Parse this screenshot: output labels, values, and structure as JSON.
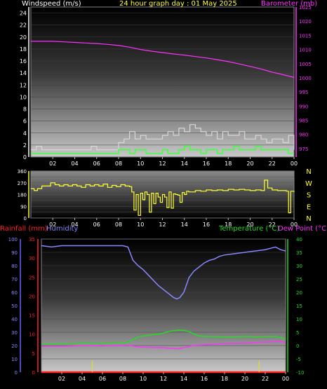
{
  "chart_data": [
    {
      "type": "line",
      "title": "24 hour graph day : 01 May 2025",
      "y_left_label": "Windspeed (m/s)",
      "y_right_label": "Barometer (mb)",
      "y_left_lim": [
        0,
        25
      ],
      "y_left_ticks": [
        0,
        2,
        4,
        6,
        8,
        10,
        12,
        14,
        16,
        18,
        20,
        22,
        24
      ],
      "y_right_lim": [
        972,
        1025
      ],
      "y_right_ticks": [
        975,
        980,
        985,
        990,
        995,
        1000,
        1005,
        1010,
        1015,
        1020,
        1025
      ],
      "x_lim": [
        0,
        24
      ],
      "x_ticks": [
        "02",
        "04",
        "06",
        "08",
        "10",
        "12",
        "14",
        "16",
        "18",
        "20",
        "22",
        "00"
      ],
      "colors": {
        "barometer": "#ff33ff",
        "gust": "#d8d8d8",
        "windspeed": "#44ff44"
      },
      "series": [
        {
          "key": "barometer",
          "x": [
            0,
            1,
            2,
            3,
            4,
            5,
            6,
            7,
            8,
            9,
            10,
            11,
            12,
            13,
            14,
            15,
            16,
            17,
            18,
            19,
            20,
            21,
            22,
            23,
            24
          ],
          "y": [
            1012.9,
            1012.9,
            1012.9,
            1012.7,
            1012.5,
            1012.3,
            1012.1,
            1011.8,
            1011.4,
            1010.8,
            1010.0,
            1009.4,
            1008.9,
            1008.4,
            1008.0,
            1007.5,
            1007.0,
            1006.4,
            1005.7,
            1004.9,
            1004.0,
            1003.1,
            1002.0,
            1001.1,
            1000.1
          ]
        },
        {
          "key": "gust",
          "x": [
            0,
            0.5,
            1,
            1.5,
            2,
            2.5,
            3,
            3.5,
            4,
            4.5,
            5,
            5.5,
            6,
            6.5,
            7,
            7.5,
            8,
            8.5,
            9,
            9.5,
            10,
            10.5,
            11,
            11.5,
            12,
            12.5,
            13,
            13.5,
            14,
            14.5,
            15,
            15.5,
            16,
            16.5,
            17,
            17.5,
            18,
            18.5,
            19,
            19.5,
            20,
            20.5,
            21,
            21.5,
            22,
            22.5,
            23,
            23.5,
            24
          ],
          "y": [
            1.2,
            1.8,
            1.2,
            1.2,
            1.2,
            1.2,
            1.2,
            1.2,
            1.2,
            1.2,
            1.2,
            1.8,
            1.2,
            1.2,
            1.2,
            1.2,
            2.4,
            3.0,
            4.2,
            3.0,
            3.6,
            3.0,
            3.0,
            3.0,
            3.6,
            4.2,
            3.6,
            4.8,
            4.2,
            5.4,
            4.8,
            4.2,
            3.6,
            4.2,
            3.0,
            4.2,
            3.6,
            3.6,
            4.2,
            3.0,
            3.0,
            3.6,
            3.0,
            2.4,
            3.0,
            3.0,
            2.4,
            3.6,
            1.2
          ]
        },
        {
          "key": "windspeed",
          "x": [
            0,
            0.5,
            1,
            1.5,
            2,
            2.5,
            3,
            3.5,
            4,
            4.5,
            5,
            5.5,
            6,
            6.5,
            7,
            7.5,
            8,
            8.5,
            9,
            9.5,
            10,
            10.5,
            11,
            11.5,
            12,
            12.5,
            13,
            13.5,
            14,
            14.5,
            15,
            15.5,
            16,
            16.5,
            17,
            17.5,
            18,
            18.5,
            19,
            19.5,
            20,
            20.5,
            21,
            21.5,
            22,
            22.5,
            23,
            23.5,
            24
          ],
          "y": [
            0.6,
            0.6,
            0.6,
            0.6,
            0.6,
            0.6,
            0.6,
            0.6,
            0.6,
            0.6,
            0.6,
            0.6,
            0.6,
            0.6,
            0.6,
            0.6,
            1.2,
            1.2,
            0.6,
            1.2,
            1.2,
            0.6,
            0.6,
            0.6,
            1.2,
            0.6,
            0.6,
            1.2,
            1.8,
            1.2,
            1.2,
            0.6,
            1.2,
            1.2,
            0.6,
            1.2,
            1.2,
            1.8,
            1.2,
            1.2,
            1.2,
            1.8,
            1.2,
            1.2,
            1.2,
            1.2,
            1.2,
            0.6,
            0.6
          ]
        }
      ]
    },
    {
      "type": "line",
      "y_left_lim": [
        0,
        360
      ],
      "y_left_ticks": [
        0,
        45,
        90,
        135,
        180,
        225,
        270,
        315,
        360
      ],
      "y_right_labels": [
        "N",
        "W",
        "S",
        "E",
        "N"
      ],
      "x_lim": [
        0,
        24
      ],
      "x_ticks": [
        "02",
        "04",
        "06",
        "08",
        "10",
        "12",
        "14",
        "16",
        "18",
        "20",
        "22",
        "00"
      ],
      "colors": {
        "direction": "#ffff33"
      },
      "series": [
        {
          "key": "direction",
          "x": [
            0,
            0.3,
            0.6,
            1,
            1.4,
            1.8,
            2.2,
            2.6,
            3,
            3.4,
            3.8,
            4.2,
            4.6,
            5,
            5.4,
            5.8,
            6.2,
            6.6,
            7,
            7.4,
            7.8,
            8.2,
            8.6,
            9,
            9.2,
            9.4,
            9.6,
            9.8,
            10,
            10.2,
            10.4,
            10.6,
            10.8,
            11,
            11.2,
            11.4,
            11.6,
            11.8,
            12,
            12.2,
            12.4,
            12.6,
            12.8,
            13,
            13.2,
            13.4,
            13.6,
            13.8,
            14,
            14.2,
            14.4,
            14.6,
            15,
            15.5,
            16,
            16.5,
            17,
            17.5,
            18,
            18.5,
            19,
            19.5,
            20,
            20.5,
            21,
            21.3,
            21.6,
            22,
            22.5,
            23,
            23.3,
            23.5,
            23.7,
            24
          ],
          "y": [
            225,
            210,
            225,
            245,
            245,
            270,
            255,
            245,
            255,
            245,
            255,
            245,
            235,
            255,
            245,
            255,
            245,
            260,
            235,
            250,
            240,
            255,
            245,
            240,
            200,
            60,
            180,
            20,
            190,
            140,
            200,
            180,
            45,
            190,
            110,
            190,
            160,
            120,
            180,
            160,
            80,
            200,
            75,
            185,
            180,
            175,
            120,
            195,
            180,
            205,
            200,
            200,
            210,
            205,
            215,
            210,
            215,
            210,
            220,
            215,
            220,
            215,
            210,
            215,
            210,
            290,
            230,
            215,
            210,
            210,
            205,
            40,
            205,
            200
          ]
        }
      ]
    },
    {
      "type": "line",
      "y_left_label_1": "Rainfall (mm)",
      "y_left_label_2": "Humidity",
      "y_right_label_1": "Temperature (°C)",
      "y_right_label_2": "Dew Point (°C)",
      "humidity_lim": [
        0,
        100
      ],
      "humidity_ticks": [
        0,
        10,
        20,
        30,
        40,
        50,
        60,
        70,
        80,
        90,
        100
      ],
      "rain_lim": [
        0,
        35
      ],
      "rain_ticks": [
        0,
        5,
        10,
        15,
        20,
        25,
        30,
        35
      ],
      "temp_lim": [
        -10,
        40
      ],
      "temp_ticks": [
        -10,
        -5,
        0,
        5,
        10,
        15,
        20,
        25,
        30,
        35,
        40
      ],
      "x_lim": [
        0,
        24
      ],
      "x_ticks": [
        "02",
        "04",
        "06",
        "08",
        "10",
        "12",
        "14",
        "16",
        "18",
        "20",
        "22",
        "00"
      ],
      "colors": {
        "humidity": "#8888ff",
        "temperature": "#22dd22",
        "dewpoint": "#ff33ff",
        "rain": "#ff2222",
        "rain_marker": "#dddd22"
      },
      "series": [
        {
          "key": "humidity",
          "x": [
            0,
            1,
            2,
            3,
            4,
            5,
            6,
            7,
            8,
            8.5,
            9,
            9.5,
            10,
            10.5,
            11,
            11.5,
            12,
            12.5,
            13,
            13.3,
            13.6,
            14,
            14.5,
            15,
            15.5,
            16,
            16.5,
            17,
            17.5,
            18,
            19,
            20,
            21,
            22,
            22.5,
            23,
            23.5,
            24
          ],
          "y": [
            95,
            94,
            95,
            95,
            95,
            95,
            95,
            95,
            95,
            94,
            84,
            80,
            77,
            73,
            69,
            65,
            62,
            59,
            56,
            55,
            56,
            60,
            71,
            76,
            79,
            82,
            84,
            85,
            87,
            88,
            89,
            90,
            91,
            92,
            93,
            94,
            92,
            91
          ]
        },
        {
          "key": "temperature",
          "x": [
            0,
            1,
            2,
            3,
            4,
            5,
            6,
            7,
            8,
            8.5,
            9,
            9.5,
            10,
            10.5,
            11,
            11.5,
            12,
            12.5,
            13,
            13.5,
            14,
            14.5,
            15,
            15.5,
            16,
            17,
            18,
            19,
            20,
            21,
            22,
            23,
            23.5,
            24
          ],
          "y": [
            0.5,
            0.5,
            0.7,
            0.7,
            0.9,
            0.8,
            0.8,
            0.9,
            1.0,
            1.3,
            2.3,
            3.2,
            3.6,
            3.9,
            4.1,
            4.3,
            4.7,
            5.2,
            5.6,
            5.8,
            5.7,
            5.2,
            4.3,
            3.6,
            3.4,
            3.3,
            3.2,
            3.2,
            3.4,
            3.2,
            3.3,
            3.4,
            3.0,
            2.4
          ]
        },
        {
          "key": "dewpoint",
          "x": [
            0,
            1,
            2,
            3,
            4,
            5,
            6,
            7,
            8,
            8.5,
            9,
            9.5,
            10,
            11,
            12,
            12.5,
            13,
            13.5,
            14,
            14.5,
            15,
            16,
            17,
            18,
            19,
            20,
            21,
            22,
            23,
            23.5,
            24
          ],
          "y": [
            -0.3,
            -0.3,
            -0.3,
            -0.2,
            0.0,
            0.0,
            -0.2,
            0.1,
            0.1,
            0.2,
            -0.2,
            -0.5,
            -0.6,
            -0.7,
            -0.8,
            -1.0,
            -1.1,
            -1.2,
            -0.8,
            -0.4,
            0.1,
            0.3,
            0.5,
            0.7,
            0.8,
            0.9,
            1.1,
            1.3,
            1.5,
            1.6,
            1.0
          ]
        },
        {
          "key": "rain",
          "x": [
            0,
            24
          ],
          "y": [
            0,
            0
          ]
        },
        {
          "key": "rain_marker",
          "x": [
            5,
            21.4
          ],
          "y": [
            3,
            3
          ]
        }
      ]
    }
  ]
}
